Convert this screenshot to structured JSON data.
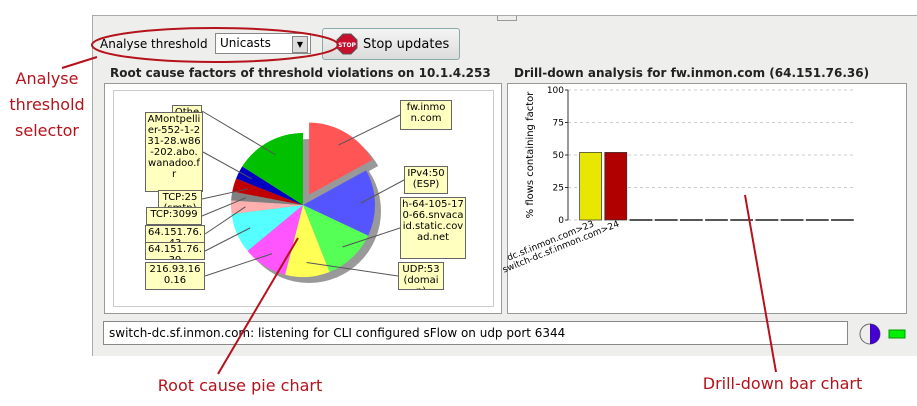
{
  "annotations": {
    "selector": "Analyse threshold selector",
    "pie": "Root cause pie chart",
    "bar": "Drill-down bar chart"
  },
  "toolbar": {
    "label": "Analyse threshold",
    "select": "Unicasts",
    "button": "Stop updates",
    "stop_icon": "STOP"
  },
  "status": "switch-dc.sf.inmon.com: listening for CLI configured sFlow on udp port 6344",
  "chart_data": [
    {
      "type": "pie",
      "title": "Root cause factors of threshold violations on 10.1.4.253",
      "categories": [
        "fw.inmon.com",
        "IPv4:50 (ESP)",
        "h-64-105-170-66.snvacaid.static.covad.net",
        "UDP:53 (domain)",
        "216.93.160.16",
        "64.151.76.39",
        "64.151.76.43",
        "TCP:3099",
        "TCP:25 (smtp)",
        "AMontpellier-552-1-231-28.w86-202.abo.wanadoo.fr",
        "Other"
      ],
      "values": [
        17,
        15,
        12,
        10,
        10,
        9,
        3,
        2,
        3,
        3,
        16
      ],
      "colors": [
        "#ff5555",
        "#5555ff",
        "#55ff55",
        "#ffff55",
        "#ff55ff",
        "#55ffff",
        "#ffafaf",
        "#808080",
        "#c00000",
        "#0000c0",
        "#00c000"
      ],
      "exploded": 0
    },
    {
      "type": "bar",
      "title": "Drill-down analysis for fw.inmon.com (64.151.76.36)",
      "categories": [
        "dc.sf.inmon.com>23",
        "switch-dc.sf.inmon.com>24",
        null,
        null,
        null,
        null,
        null,
        null,
        null,
        null,
        null
      ],
      "values": [
        52,
        52,
        0,
        0,
        0,
        0,
        0,
        0,
        0,
        0,
        0
      ],
      "colors": [
        "#e6e600",
        "#b00000",
        "#555555",
        "#555555",
        "#555555",
        "#555555",
        "#555555",
        "#555555",
        "#555555",
        "#555555",
        "#555555"
      ],
      "ylabel": "% flows containing factor",
      "ylim": [
        0,
        100
      ],
      "yticks": [
        0,
        25,
        50,
        75,
        100
      ],
      "grid": true
    }
  ]
}
